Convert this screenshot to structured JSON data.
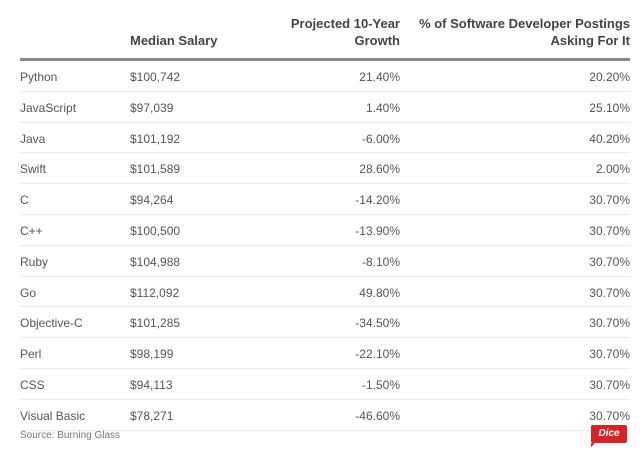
{
  "table": {
    "headers": {
      "language": "",
      "salary": "Median Salary",
      "growth_line1": "Projected 10-Year",
      "growth_line2": "Growth",
      "postings_line1": "% of Software Developer Postings",
      "postings_line2": "Asking For It"
    },
    "rows": [
      {
        "language": "Python",
        "salary": "$100,742",
        "growth": "21.40%",
        "postings": "20.20%"
      },
      {
        "language": "JavaScript",
        "salary": "$97,039",
        "growth": "1.40%",
        "postings": "25.10%"
      },
      {
        "language": "Java",
        "salary": "$101,192",
        "growth": "-6.00%",
        "postings": "40.20%"
      },
      {
        "language": "Swift",
        "salary": "$101,589",
        "growth": "28.60%",
        "postings": "2.00%"
      },
      {
        "language": "C",
        "salary": "$94,264",
        "growth": "-14.20%",
        "postings": "30.70%"
      },
      {
        "language": "C++",
        "salary": "$100,500",
        "growth": "-13.90%",
        "postings": "30.70%"
      },
      {
        "language": "Ruby",
        "salary": "$104,988",
        "growth": "-8.10%",
        "postings": "30.70%"
      },
      {
        "language": "Go",
        "salary": "$112,092",
        "growth": "49.80%",
        "postings": "30.70%"
      },
      {
        "language": "Objective-C",
        "salary": "$101,285",
        "growth": "-34.50%",
        "postings": "30.70%"
      },
      {
        "language": "Perl",
        "salary": "$98,199",
        "growth": "-22.10%",
        "postings": "30.70%"
      },
      {
        "language": "CSS",
        "salary": "$94,113",
        "growth": "-1.50%",
        "postings": "30.70%"
      },
      {
        "language": "Visual Basic",
        "salary": "$78,271",
        "growth": "-46.60%",
        "postings": "30.70%"
      }
    ]
  },
  "footer": {
    "source": "Source: Burning Glass",
    "logo_text": "Dice"
  },
  "colors": {
    "logo": "#d42427"
  }
}
